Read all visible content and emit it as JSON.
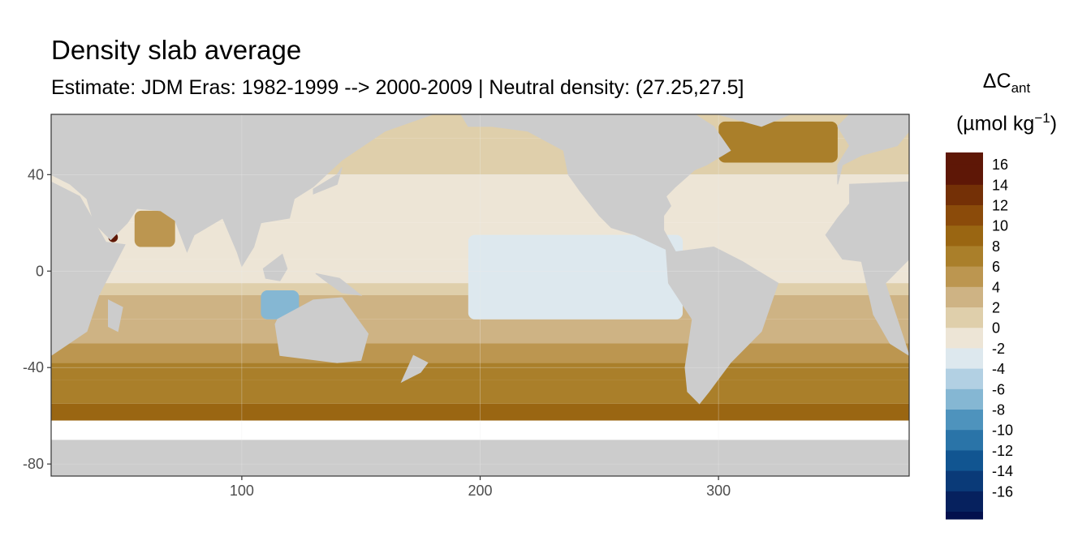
{
  "title": "Density slab average",
  "subtitle": "Estimate: JDM Eras: 1982-1999 --> 2000-2009 | Neutral density: (27.25,27.5]",
  "legend": {
    "symbol": "ΔC",
    "symbol_sub": "ant",
    "unit_prefix": "(µmol kg",
    "unit_sup": "−1",
    "unit_suffix": ")",
    "bins": [
      {
        "label": "16",
        "color": "#5e1706"
      },
      {
        "label": "14",
        "color": "#743006"
      },
      {
        "label": "12",
        "color": "#8b4b0a"
      },
      {
        "label": "10",
        "color": "#9a6612"
      },
      {
        "label": "8",
        "color": "#aa7f2a"
      },
      {
        "label": "6",
        "color": "#bc9650"
      },
      {
        "label": "4",
        "color": "#ceb384"
      },
      {
        "label": "2",
        "color": "#dfcfab"
      },
      {
        "label": "0",
        "color": "#ede5d6"
      },
      {
        "label": "-2",
        "color": "#dde8ee"
      },
      {
        "label": "-4",
        "color": "#b2d0e3"
      },
      {
        "label": "-6",
        "color": "#85b7d3"
      },
      {
        "label": "-8",
        "color": "#4e93bd"
      },
      {
        "label": "-10",
        "color": "#2a74a8"
      },
      {
        "label": "-12",
        "color": "#115591"
      },
      {
        "label": "-14",
        "color": "#0a3a78"
      },
      {
        "label": "-16",
        "color": "#06215e"
      }
    ],
    "extra_color": "#03104d"
  },
  "chart_data": {
    "type": "heatmap",
    "title": "Density slab average",
    "subtitle": "Estimate: JDM Eras: 1982-1999 --> 2000-2009 | Neutral density: (27.25,27.5]",
    "xlabel": "",
    "ylabel": "",
    "x_ticks": [
      100,
      200,
      300
    ],
    "y_ticks": [
      40,
      0,
      -40,
      -80
    ],
    "y_tick_labels": [
      "40",
      "0",
      "-40",
      "-80"
    ],
    "xlim": [
      20,
      380
    ],
    "ylim": [
      -85,
      65
    ],
    "grid": true,
    "legend_position": "right",
    "land_color": "#cccccc",
    "nodata_color": "#ffffff",
    "zonal_bands": [
      {
        "lat_range": [
          55,
          65
        ],
        "label": "2"
      },
      {
        "lat_range": [
          40,
          55
        ],
        "label": "2"
      },
      {
        "lat_range": [
          20,
          40
        ],
        "label": "0"
      },
      {
        "lat_range": [
          5,
          20
        ],
        "label": "0"
      },
      {
        "lat_range": [
          -5,
          5
        ],
        "label": "0"
      },
      {
        "lat_range": [
          -10,
          -5
        ],
        "label": "2"
      },
      {
        "lat_range": [
          -20,
          -10
        ],
        "label": "4"
      },
      {
        "lat_range": [
          -30,
          -20
        ],
        "label": "4"
      },
      {
        "lat_range": [
          -38,
          -30
        ],
        "label": "6"
      },
      {
        "lat_range": [
          -45,
          -38
        ],
        "label": "8"
      },
      {
        "lat_range": [
          -55,
          -45
        ],
        "label": "8"
      },
      {
        "lat_range": [
          -62,
          -55
        ],
        "label": "10"
      },
      {
        "lat_range": [
          -70,
          -62
        ],
        "label": "nodata"
      }
    ],
    "patches": [
      {
        "region": "tropical east Pacific",
        "lon_range": [
          195,
          285
        ],
        "lat_range": [
          -20,
          15
        ],
        "label": "-2"
      },
      {
        "region": "Indonesian seas",
        "lon_range": [
          108,
          124
        ],
        "lat_range": [
          -20,
          -8
        ],
        "label": "-6"
      },
      {
        "region": "Red Sea",
        "lon_range": [
          44,
          48
        ],
        "lat_range": [
          12,
          16
        ],
        "label": "16"
      },
      {
        "region": "North Atlantic subpolar",
        "lon_range": [
          300,
          350
        ],
        "lat_range": [
          45,
          62
        ],
        "label": "8"
      },
      {
        "region": "Arabian Sea",
        "lon_range": [
          55,
          72
        ],
        "lat_range": [
          10,
          25
        ],
        "label": "6"
      }
    ]
  }
}
